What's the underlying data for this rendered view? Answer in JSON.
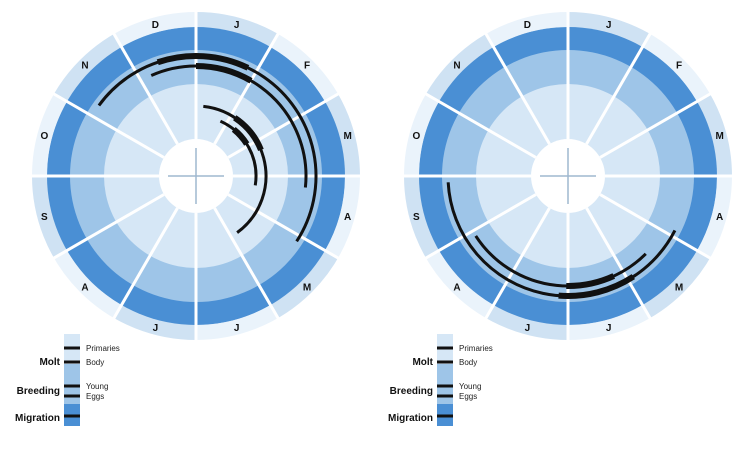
{
  "months": [
    "J",
    "F",
    "M",
    "A",
    "M",
    "J",
    "J",
    "A",
    "S",
    "O",
    "N",
    "D"
  ],
  "colors": {
    "outer_ring": "#cfe2f3",
    "migration_ring": "#4a8fd4",
    "breeding_ring": "#9ec5e8",
    "molt_ring": "#d6e7f6",
    "center": "#ffffff",
    "divider": "#ffffff",
    "track": "#111111"
  },
  "diagrams": [
    {
      "id": "left",
      "tracks": [
        {
          "name": "Migration",
          "start_month": 10.2,
          "end_month": 4.1
        },
        {
          "name": "Migration",
          "start_month": 11.2,
          "end_month": 3.2
        },
        {
          "name": "Molt",
          "start_month": 0.2,
          "end_month": 4.8
        },
        {
          "name": "Molt",
          "start_month": 0.8,
          "end_month": 3.3
        }
      ]
    },
    {
      "id": "right",
      "tracks": [
        {
          "name": "Breeding",
          "start_month": 3.9,
          "end_month": 8.9
        },
        {
          "name": "Breeding",
          "start_month": 4.5,
          "end_month": 7.9
        }
      ]
    }
  ],
  "legend": {
    "groups": [
      {
        "label": "Molt",
        "items": [
          "Primaries",
          "Body"
        ]
      },
      {
        "label": "Breeding",
        "items": [
          "Young",
          "Eggs"
        ]
      },
      {
        "label": "Migration",
        "items": []
      }
    ]
  }
}
